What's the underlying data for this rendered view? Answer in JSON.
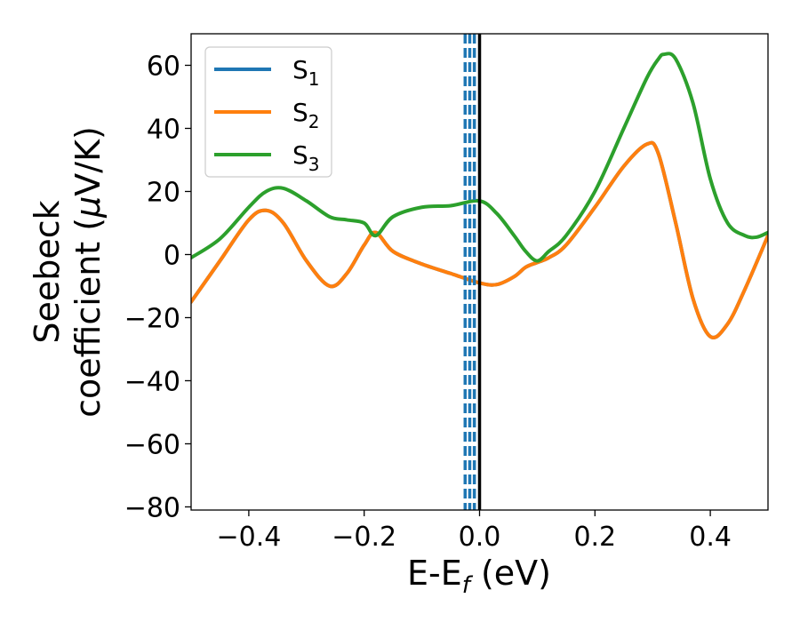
{
  "chart_data": {
    "type": "line",
    "xlabel_main": "E-E",
    "xlabel_sub": "f",
    "xlabel_unit": " (eV)",
    "ylabel_line1": "Seebeck",
    "ylabel_line2_pre": "coefficient  (",
    "ylabel_mu": "μ",
    "ylabel_line2_post": "V/K)",
    "xlim": [
      -0.5,
      0.5
    ],
    "ylim": [
      -81,
      70
    ],
    "xticks": [
      -0.4,
      -0.2,
      0.0,
      0.2,
      0.4
    ],
    "xtick_labels": [
      "−0.4",
      "−0.2",
      "0.0",
      "0.2",
      "0.4"
    ],
    "yticks": [
      -80,
      -60,
      -40,
      -20,
      0,
      20,
      40,
      60
    ],
    "ytick_labels": [
      "−80",
      "−60",
      "−40",
      "−20",
      "0",
      "20",
      "40",
      "60"
    ],
    "legend_position": "top-left",
    "fermi_line_x": 0.0,
    "dashed_lines_x": [
      -0.025,
      -0.017,
      -0.009
    ],
    "colors": {
      "s1": "#1f77b4",
      "s2": "#ff7f0e",
      "s3": "#2ca02c",
      "fermi": "#000000",
      "dashed": "#1f77b4"
    },
    "series": [
      {
        "name": "S",
        "sub": "1",
        "color": "#1f77b4",
        "x": [
          -0.5,
          -0.45,
          -0.4,
          -0.37,
          -0.34,
          -0.3,
          -0.26,
          -0.23,
          -0.2,
          -0.18,
          -0.15,
          -0.1,
          -0.05,
          0.0,
          0.03,
          0.06,
          0.08,
          0.1,
          0.12,
          0.15,
          0.2,
          0.25,
          0.29,
          0.31,
          0.34,
          0.37,
          0.4,
          0.43,
          0.46,
          0.5
        ],
        "values": [
          -15,
          -2,
          11,
          14,
          10,
          -2,
          -10,
          -6,
          3,
          7,
          1,
          -3,
          -6,
          -9,
          -9.5,
          -7,
          -4,
          -2.5,
          -1,
          3,
          15,
          28,
          35,
          32,
          10,
          -14,
          -26,
          -22,
          -11,
          6
        ]
      },
      {
        "name": "S",
        "sub": "2",
        "color": "#ff7f0e",
        "x": [
          -0.5,
          -0.45,
          -0.4,
          -0.37,
          -0.34,
          -0.3,
          -0.26,
          -0.23,
          -0.2,
          -0.18,
          -0.15,
          -0.1,
          -0.05,
          0.0,
          0.03,
          0.06,
          0.08,
          0.1,
          0.12,
          0.15,
          0.2,
          0.25,
          0.29,
          0.31,
          0.34,
          0.37,
          0.4,
          0.43,
          0.46,
          0.5
        ],
        "values": [
          -15,
          -2,
          11,
          14,
          10,
          -2,
          -10,
          -6,
          3,
          7,
          1,
          -3,
          -6,
          -9,
          -9.5,
          -7,
          -4,
          -2.5,
          -1,
          3,
          15,
          28,
          35,
          32,
          10,
          -14,
          -26,
          -22,
          -11,
          6
        ]
      },
      {
        "name": "S",
        "sub": "3",
        "color": "#2ca02c",
        "x": [
          -0.5,
          -0.45,
          -0.4,
          -0.37,
          -0.34,
          -0.3,
          -0.26,
          -0.23,
          -0.2,
          -0.18,
          -0.15,
          -0.1,
          -0.05,
          0.0,
          0.03,
          0.06,
          0.08,
          0.1,
          0.12,
          0.15,
          0.2,
          0.25,
          0.29,
          0.31,
          0.32,
          0.34,
          0.37,
          0.4,
          0.43,
          0.46,
          0.48,
          0.5
        ],
        "values": [
          -1,
          5,
          15,
          20,
          21,
          17,
          12,
          11,
          10,
          6,
          12,
          15,
          15.5,
          17,
          13,
          6,
          1,
          -2,
          1,
          6,
          20,
          40,
          56,
          62,
          63.5,
          62,
          48,
          24,
          10,
          6,
          5.5,
          7
        ]
      }
    ]
  }
}
